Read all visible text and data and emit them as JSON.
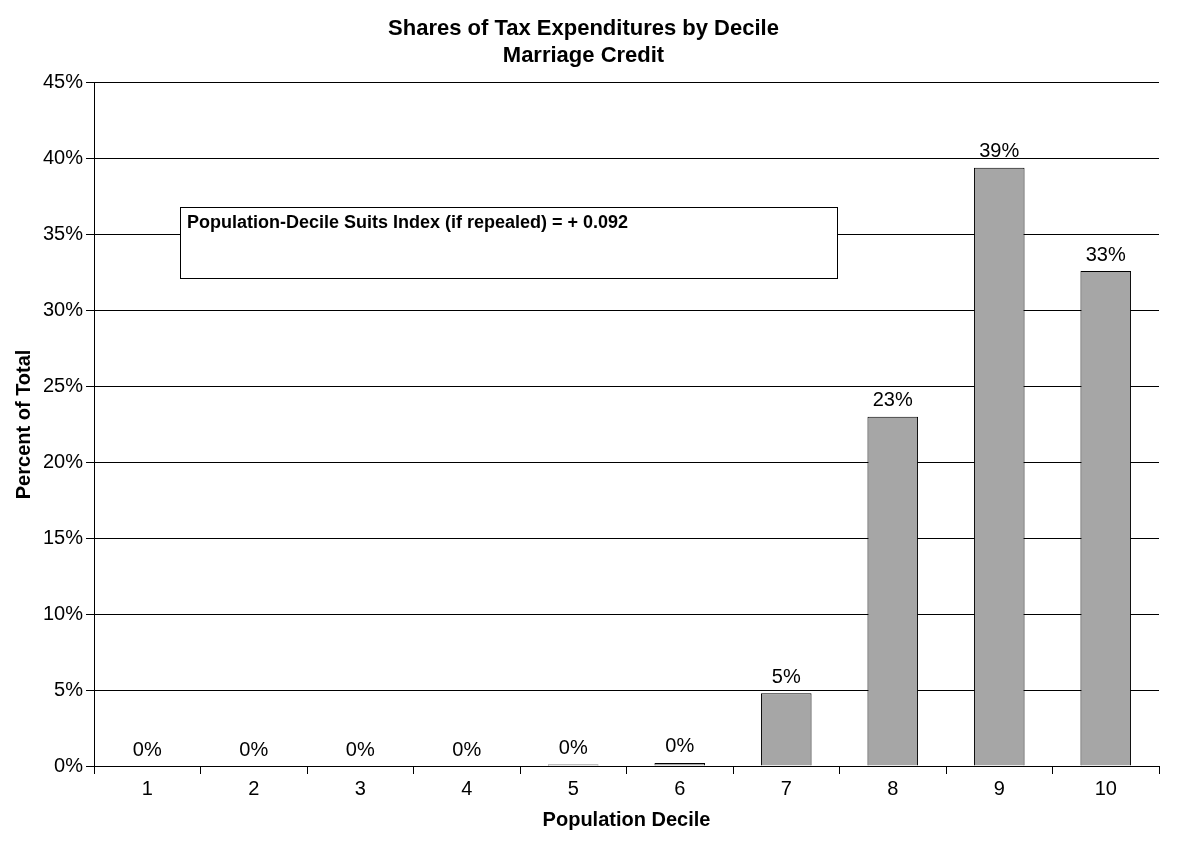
{
  "chart_data": {
    "type": "bar",
    "title": "Shares of Tax Expenditures by Decile",
    "subtitle": "Marriage Credit",
    "xlabel": "Population Decile",
    "ylabel": "Percent of Total",
    "categories": [
      "1",
      "2",
      "3",
      "4",
      "5",
      "6",
      "7",
      "8",
      "9",
      "10"
    ],
    "values": [
      0,
      0,
      0,
      0,
      0.1,
      0.2,
      4.8,
      23.0,
      39.4,
      32.6
    ],
    "value_labels": [
      "0%",
      "0%",
      "0%",
      "0%",
      "0%",
      "0%",
      "5%",
      "23%",
      "39%",
      "33%"
    ],
    "color": "#a6a6a6",
    "ylim": [
      0,
      45
    ],
    "yticks": [
      {
        "value": 0,
        "label": "0%"
      },
      {
        "value": 5,
        "label": "5%"
      },
      {
        "value": 10,
        "label": "10%"
      },
      {
        "value": 15,
        "label": "15%"
      },
      {
        "value": 20,
        "label": "20%"
      },
      {
        "value": 25,
        "label": "25%"
      },
      {
        "value": 30,
        "label": "30%"
      },
      {
        "value": 35,
        "label": "35%"
      },
      {
        "value": 40,
        "label": "40%"
      },
      {
        "value": 45,
        "label": "45%"
      }
    ],
    "grid": "y",
    "legend": false,
    "annotations": [
      "Population-Decile Suits Index (if repealed) = + 0.092"
    ]
  }
}
